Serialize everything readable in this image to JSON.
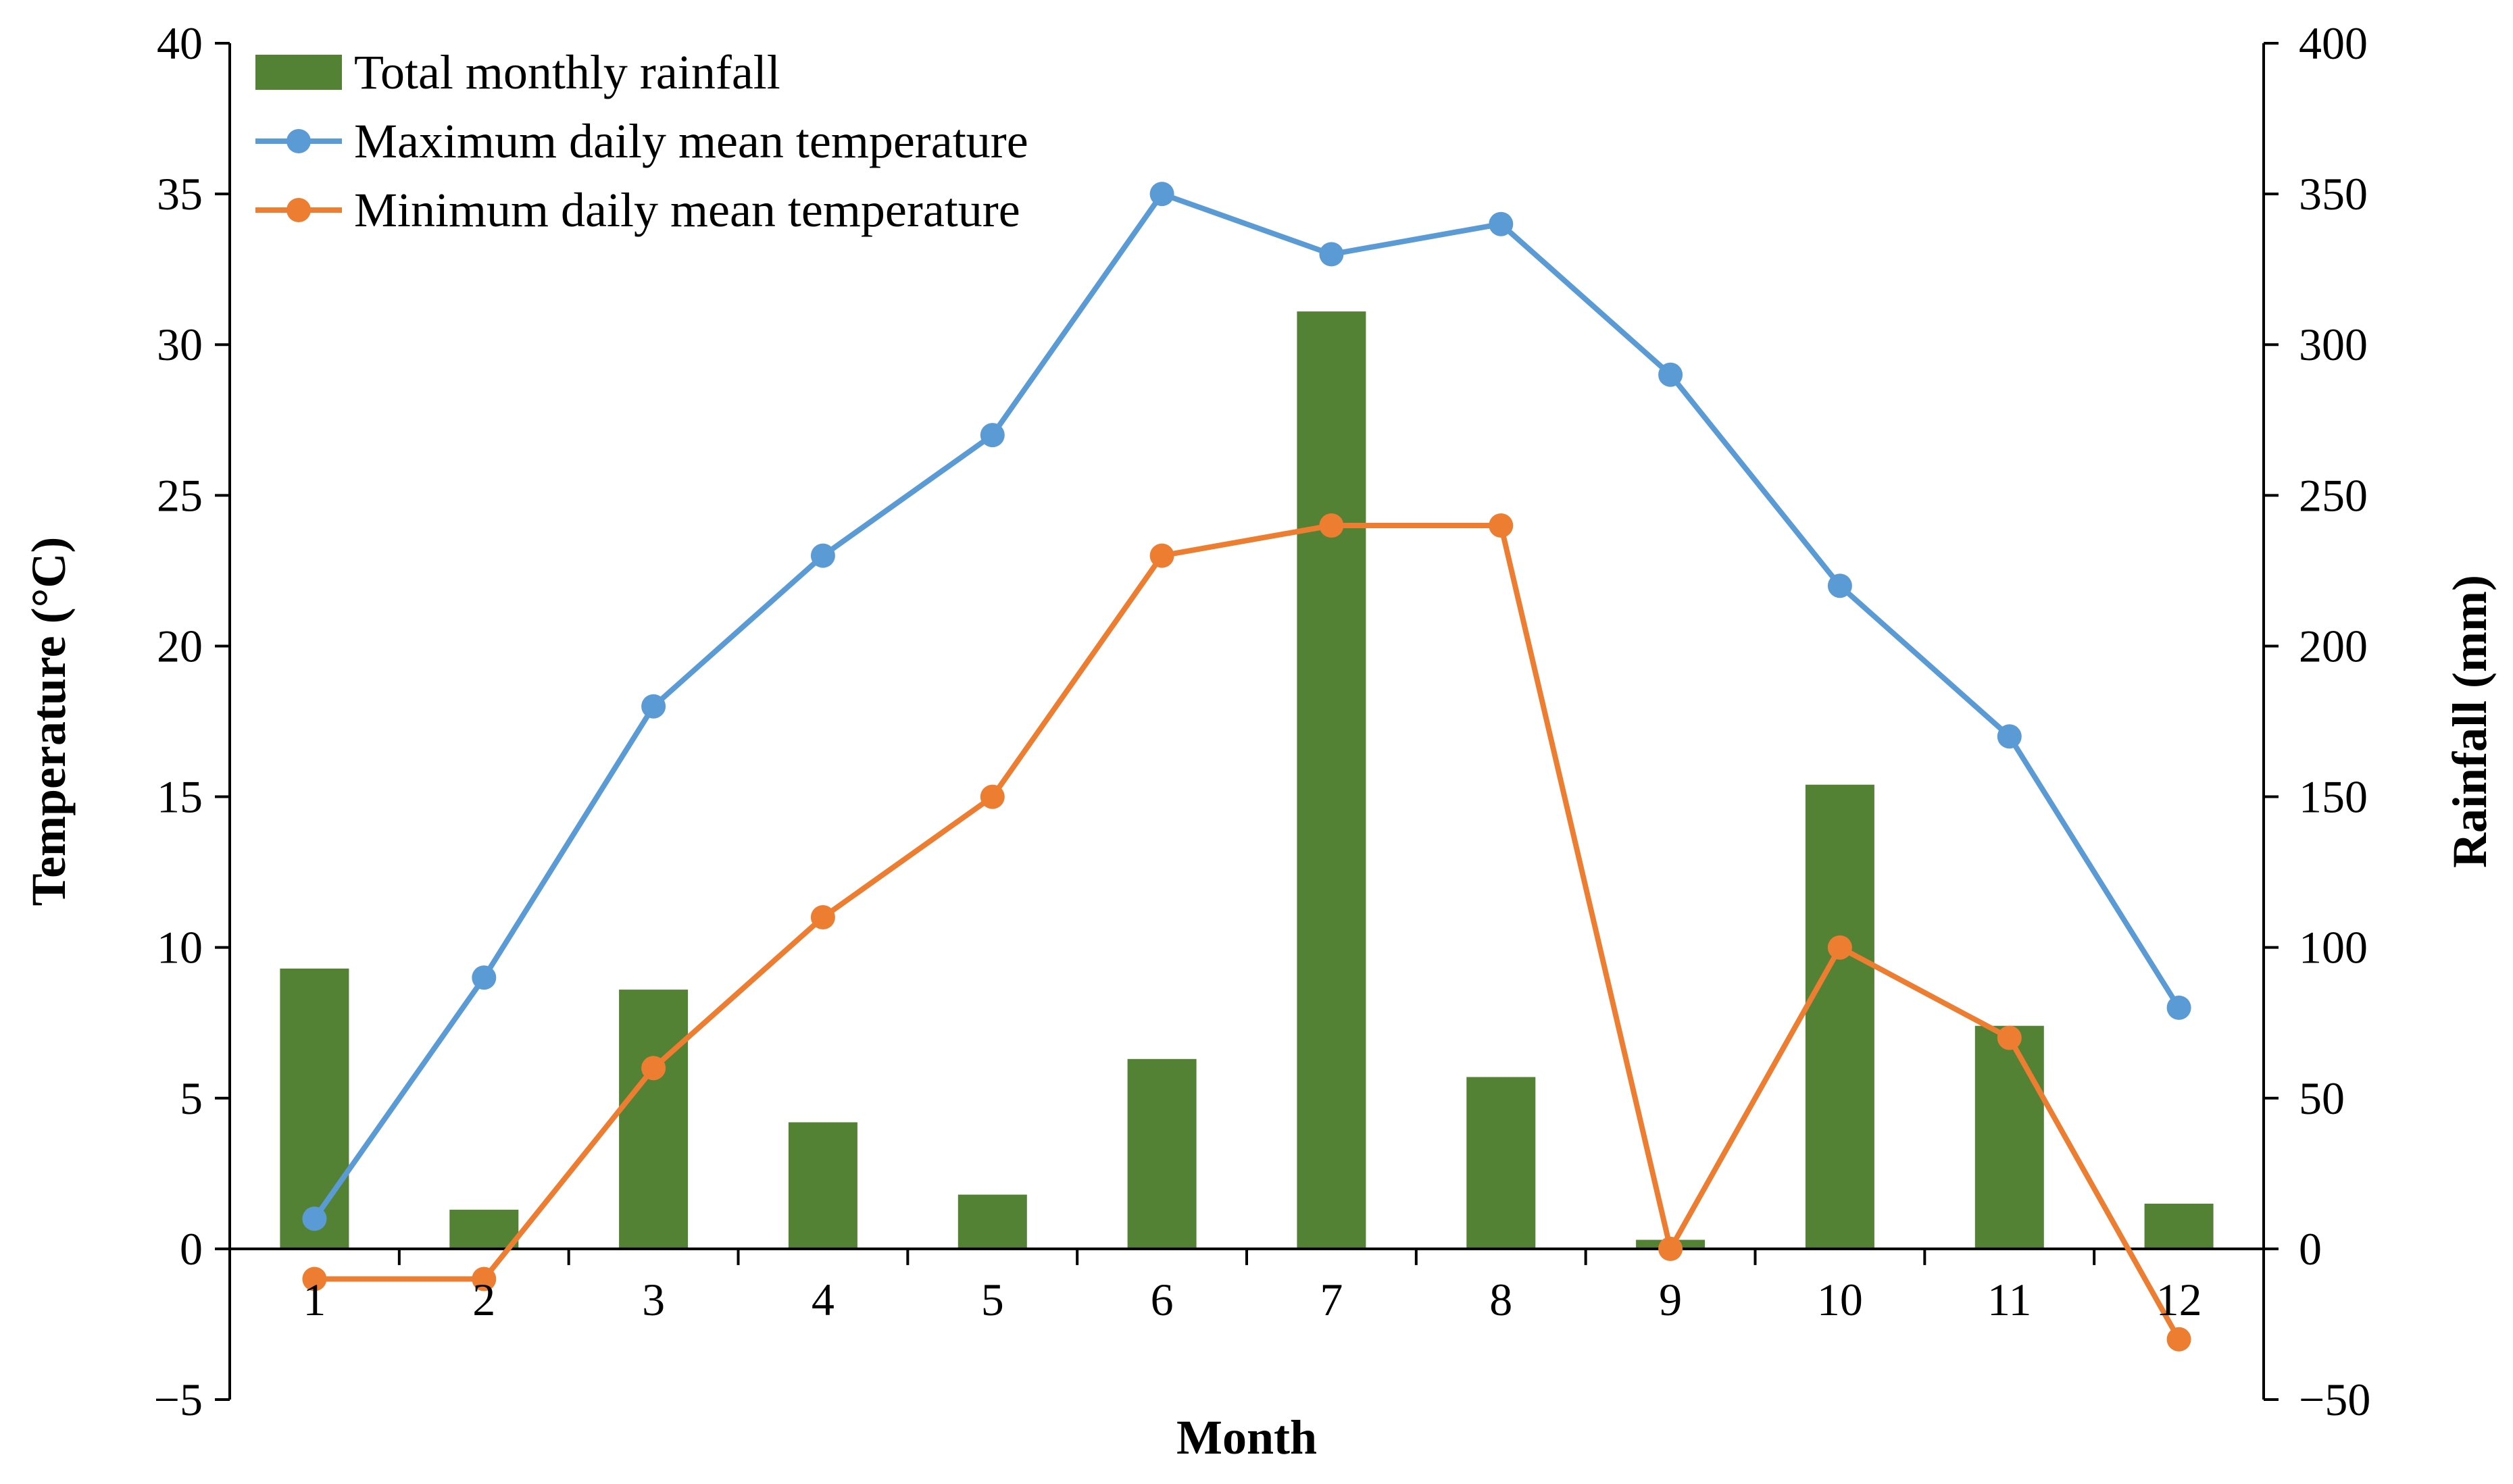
{
  "chart_data": {
    "type": "bar+line",
    "title": "",
    "xlabel": "Month",
    "ylabel_left": "Temperature (°C)",
    "ylabel_right": "Rainfall (mm)",
    "categories": [
      "1",
      "2",
      "3",
      "4",
      "5",
      "6",
      "7",
      "8",
      "9",
      "10",
      "11",
      "12"
    ],
    "y_left": {
      "min": -5,
      "max": 40,
      "ticks": [
        {
          "value": -5,
          "label": "−5"
        },
        {
          "value": 0,
          "label": "0"
        },
        {
          "value": 5,
          "label": "5"
        },
        {
          "value": 10,
          "label": "10"
        },
        {
          "value": 15,
          "label": "15"
        },
        {
          "value": 20,
          "label": "20"
        },
        {
          "value": 25,
          "label": "25"
        },
        {
          "value": 30,
          "label": "30"
        },
        {
          "value": 35,
          "label": "35"
        },
        {
          "value": 40,
          "label": "40"
        }
      ]
    },
    "y_right": {
      "min": -50,
      "max": 400,
      "ticks": [
        {
          "value": -50,
          "label": "−50"
        },
        {
          "value": 0,
          "label": "0"
        },
        {
          "value": 50,
          "label": "50"
        },
        {
          "value": 100,
          "label": "100"
        },
        {
          "value": 150,
          "label": "150"
        },
        {
          "value": 200,
          "label": "200"
        },
        {
          "value": 250,
          "label": "250"
        },
        {
          "value": 300,
          "label": "300"
        },
        {
          "value": 350,
          "label": "350"
        },
        {
          "value": 400,
          "label": "400"
        }
      ]
    },
    "series": [
      {
        "name": "Total monthly rainfall",
        "type": "bar",
        "axis": "right",
        "color": "#548235",
        "values": [
          93,
          13,
          86,
          42,
          18,
          63,
          311,
          57,
          3,
          154,
          74,
          15
        ]
      },
      {
        "name": "Maximum daily mean temperature",
        "type": "line",
        "axis": "left",
        "color": "#5B9BD5",
        "values": [
          1,
          9,
          18,
          23,
          27,
          35,
          33,
          34,
          29,
          22,
          17,
          8
        ]
      },
      {
        "name": "Minimum daily mean temperature",
        "type": "line",
        "axis": "left",
        "color": "#ED7D31",
        "values": [
          -1,
          -1,
          6,
          11,
          15,
          23,
          24,
          24,
          0,
          10,
          7,
          -3
        ]
      }
    ],
    "legend_position": "top-left",
    "grid": false
  }
}
